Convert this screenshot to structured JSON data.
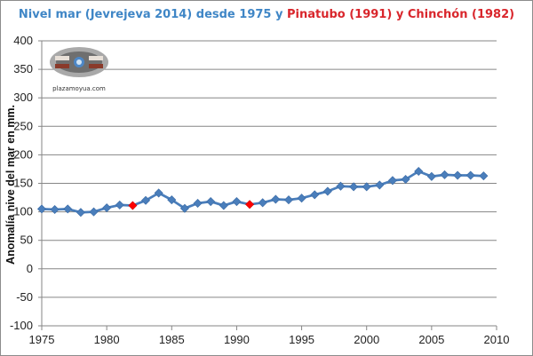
{
  "title": {
    "part1": "Nivel mar (Jevrejeva 2014) desde 1975 y ",
    "part2": "Pinatubo (1991)",
    "part3": " y ",
    "part4": "Chinchón (1982)"
  },
  "logo": {
    "caption": "plazamoyua.com"
  },
  "colors": {
    "series": "#4a7ebb",
    "highlight": "#ff0000",
    "title_blue": "#3f86c6",
    "title_red": "#d9262c",
    "gridline": "#868686"
  },
  "chart_data": {
    "type": "line",
    "xlabel": "",
    "ylabel": "Anomalía nive del mar en mm.",
    "xlim": [
      1975,
      2010
    ],
    "ylim": [
      -100,
      400
    ],
    "x_ticks": [
      1975,
      1980,
      1985,
      1990,
      1995,
      2000,
      2005,
      2010
    ],
    "y_ticks": [
      -100,
      -50,
      0,
      50,
      100,
      150,
      200,
      250,
      300,
      350,
      400
    ],
    "grid": "horizontal",
    "legend": "none",
    "series": [
      {
        "x": [
          1975,
          1976,
          1977,
          1978,
          1979,
          1980,
          1981,
          1982,
          1983,
          1984,
          1985,
          1986,
          1987,
          1988,
          1989,
          1990,
          1991,
          1992,
          1993,
          1994,
          1995,
          1996,
          1997,
          1998,
          1999,
          2000,
          2001,
          2002,
          2003,
          2004,
          2005,
          2006,
          2007,
          2008,
          2009
        ],
        "y": [
          105,
          104,
          105,
          99,
          100,
          107,
          112,
          111,
          120,
          133,
          121,
          106,
          115,
          118,
          111,
          118,
          113,
          116,
          122,
          121,
          124,
          130,
          136,
          145,
          144,
          144,
          147,
          155,
          157,
          171,
          162,
          165,
          164,
          164,
          163
        ]
      }
    ],
    "highlighted_points": [
      {
        "x": 1982,
        "y": 111
      },
      {
        "x": 1991,
        "y": 113
      }
    ]
  }
}
